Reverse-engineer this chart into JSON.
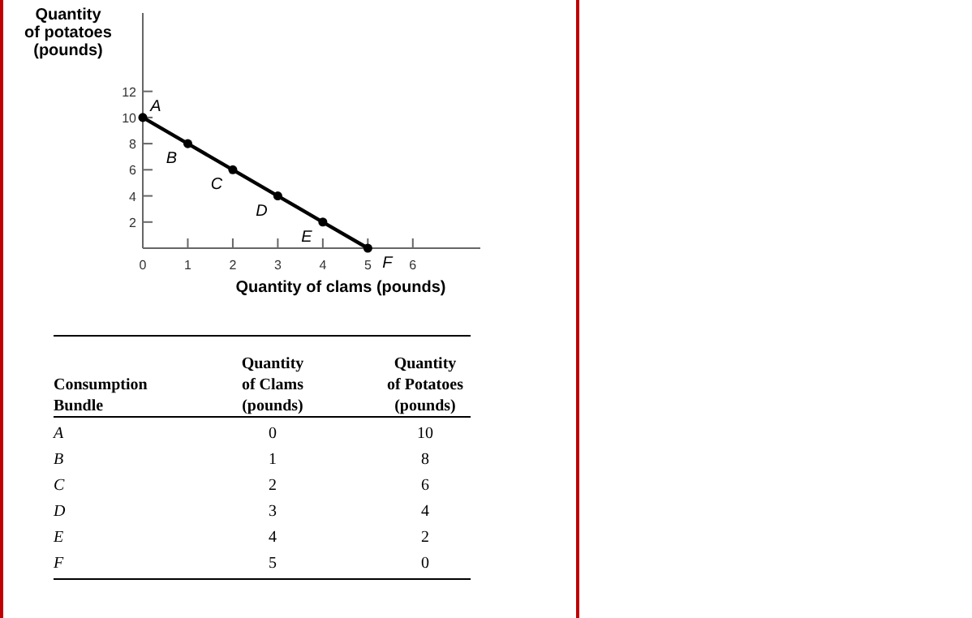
{
  "chart_data": [
    {
      "type": "line",
      "xlabel": "Quantity of clams (pounds)",
      "ylabel": "Quantity\nof potatoes\n(pounds)",
      "x": [
        0,
        1,
        2,
        3,
        4,
        5
      ],
      "series": [
        {
          "color": "#000000",
          "values": [
            10,
            8,
            6,
            4,
            2,
            0
          ]
        }
      ],
      "marker": "circle",
      "line_style": "solid",
      "xlim": [
        0,
        7.5
      ],
      "xticks": [
        0,
        1,
        2,
        3,
        4,
        5,
        6
      ],
      "ylim": [
        0,
        18
      ],
      "yticks": [
        2,
        4,
        6,
        8,
        10,
        12
      ],
      "annotations": [
        {
          "text": "A",
          "x": 0,
          "y": 10
        },
        {
          "text": "B",
          "x": 1,
          "y": 8
        },
        {
          "text": "C",
          "x": 2,
          "y": 6
        },
        {
          "text": "D",
          "x": 3,
          "y": 4
        },
        {
          "text": "E",
          "x": 4,
          "y": 2
        },
        {
          "text": "F",
          "x": 5,
          "y": 0
        }
      ]
    },
    {
      "type": "other",
      "xlabel": "Consumption\nBundle",
      "categories": [
        "A",
        "B",
        "C",
        "D",
        "E",
        "F"
      ],
      "data_labels": true,
      "series": [
        {
          "name": "Quantity\nof Clams\n(pounds)",
          "values": [
            0,
            1,
            2,
            3,
            4,
            5
          ]
        },
        {
          "name": "Quantity\nof Potatoes\n(pounds)",
          "values": [
            10,
            8,
            6,
            4,
            2,
            0
          ]
        }
      ]
    }
  ]
}
